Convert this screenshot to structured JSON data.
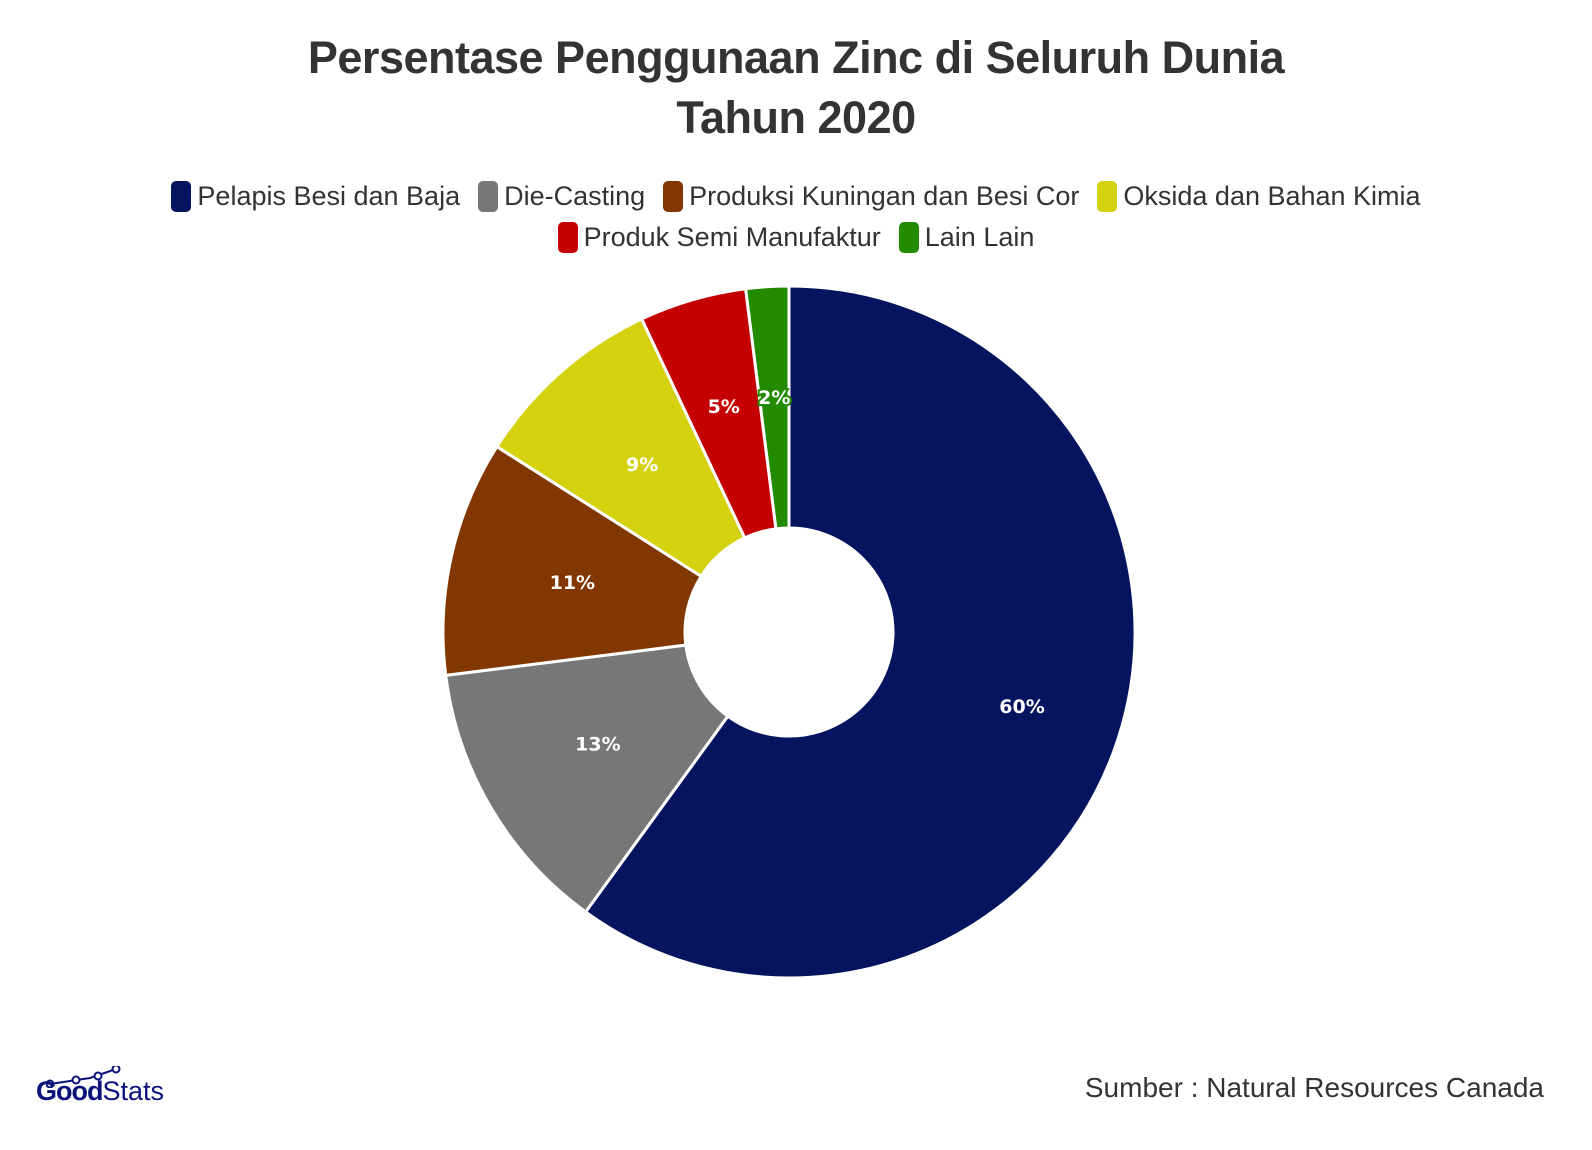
{
  "title": {
    "line1": "Persentase Penggunaan Zinc di Seluruh Dunia",
    "line2": "Tahun 2020"
  },
  "legend": {
    "row1": [
      {
        "label": "Pelapis Besi dan Baja",
        "color": "#05145e"
      },
      {
        "label": "Die-Casting",
        "color": "#777777"
      },
      {
        "label": "Produksi Kuningan dan Besi Cor",
        "color": "#823700"
      },
      {
        "label": "Oksida dan Bahan Kimia",
        "color": "#d4d10f"
      }
    ],
    "row2": [
      {
        "label": "Produk Semi Manufaktur",
        "color": "#c40000"
      },
      {
        "label": "Lain Lain",
        "color": "#228b00"
      }
    ]
  },
  "footer": {
    "logo_good": "Good",
    "logo_stats": "Stats",
    "source": "Sumber : Natural Resources Canada"
  },
  "chart_data": {
    "type": "pie",
    "variant": "donut",
    "title": "Persentase Penggunaan Zinc di Seluruh Dunia Tahun 2020",
    "categories": [
      "Pelapis Besi dan Baja",
      "Die-Casting",
      "Produksi Kuningan dan Besi Cor",
      "Oksida dan Bahan Kimia",
      "Produk Semi Manufaktur",
      "Lain Lain"
    ],
    "values": [
      60,
      13,
      11,
      9,
      5,
      2
    ],
    "labels": [
      "60%",
      "13%",
      "11%",
      "9%",
      "5%",
      "2%"
    ],
    "colors": [
      "#05145e",
      "#777777",
      "#823700",
      "#d4d10f",
      "#c40000",
      "#228b00"
    ],
    "unit": "%",
    "start_angle": "12 o'clock, clockwise",
    "legend_position": "top",
    "source": "Natural Resources Canada"
  }
}
